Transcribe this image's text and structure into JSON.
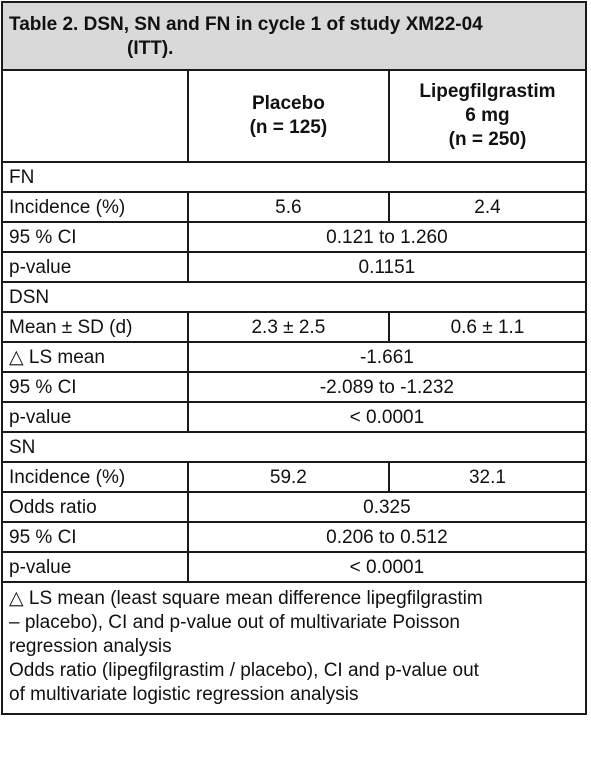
{
  "title_line1": "Table 2. DSN, SN and FN in cycle 1 of study XM22-04",
  "title_line2": "(ITT).",
  "header": {
    "col2_line1": "Placebo",
    "col2_line2": "(n = 125)",
    "col3_line1": "Lipegfilgrastim",
    "col3_line2": "6 mg",
    "col3_line3": "(n = 250)"
  },
  "fn": {
    "section": "FN",
    "incidence_label": "Incidence (%)",
    "incidence_placebo": "5.6",
    "incidence_lipeg": "2.4",
    "ci_label": "95 % CI",
    "ci_value": "0.121 to 1.260",
    "p_label": "p-value",
    "p_value": "0.1151"
  },
  "dsn": {
    "section": "DSN",
    "mean_label": "Mean ± SD (d)",
    "mean_placebo": "2.3 ± 2.5",
    "mean_lipeg": "0.6 ± 1.1",
    "ls_label": "△ LS mean",
    "ls_value": "-1.661",
    "ci_label": "95 % CI",
    "ci_value": "-2.089 to -1.232",
    "p_label": "p-value",
    "p_value": "< 0.0001"
  },
  "sn": {
    "section": "SN",
    "incidence_label": "Incidence (%)",
    "incidence_placebo": "59.2",
    "incidence_lipeg": "32.1",
    "odds_label": "Odds ratio",
    "odds_value": "0.325",
    "ci_label": "95 % CI",
    "ci_value": "0.206 to 0.512",
    "p_label": "p-value",
    "p_value": "< 0.0001"
  },
  "footnote": {
    "line1": "△ LS mean (least square mean difference lipegfilgrastim",
    "line2": "– placebo), CI and p-value out of multivariate Poisson",
    "line3": "regression analysis",
    "line4": "Odds ratio (lipegfilgrastim / placebo), CI and p-value out",
    "line5": "of multivariate logistic regression analysis"
  }
}
